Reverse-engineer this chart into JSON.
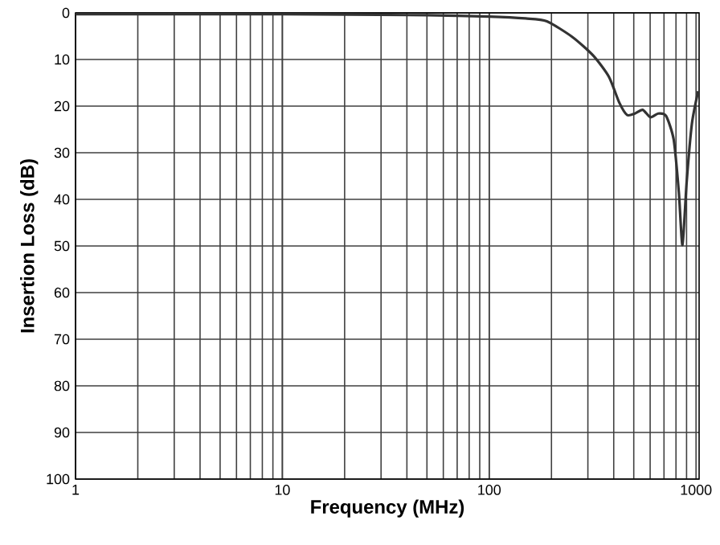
{
  "chart_data": {
    "type": "line",
    "xlabel": "Frequency (MHz)",
    "ylabel": "Insertion Loss (dB)",
    "log": "x",
    "grid": true,
    "xlim": [
      1,
      1035
    ],
    "ylim": [
      100,
      0
    ],
    "xticks": [
      1,
      10,
      100,
      1000
    ],
    "yticks": [
      0,
      10,
      20,
      30,
      40,
      50,
      60,
      70,
      80,
      90,
      100
    ],
    "x": [
      1,
      10,
      50,
      100,
      150,
      190,
      253,
      319,
      379,
      426,
      464,
      506,
      552,
      602,
      656,
      716,
      780,
      826,
      860,
      901,
      955,
      1024
    ],
    "series": [
      {
        "color": "#333333",
        "values": [
          0.3,
          0.3,
          0.5,
          0.8,
          1.2,
          1.8,
          5.2,
          9.2,
          13.7,
          19.3,
          21.9,
          21.6,
          20.8,
          22.4,
          21.6,
          22.1,
          27.2,
          38.5,
          49.8,
          36.3,
          23.8,
          16.8
        ]
      }
    ]
  }
}
